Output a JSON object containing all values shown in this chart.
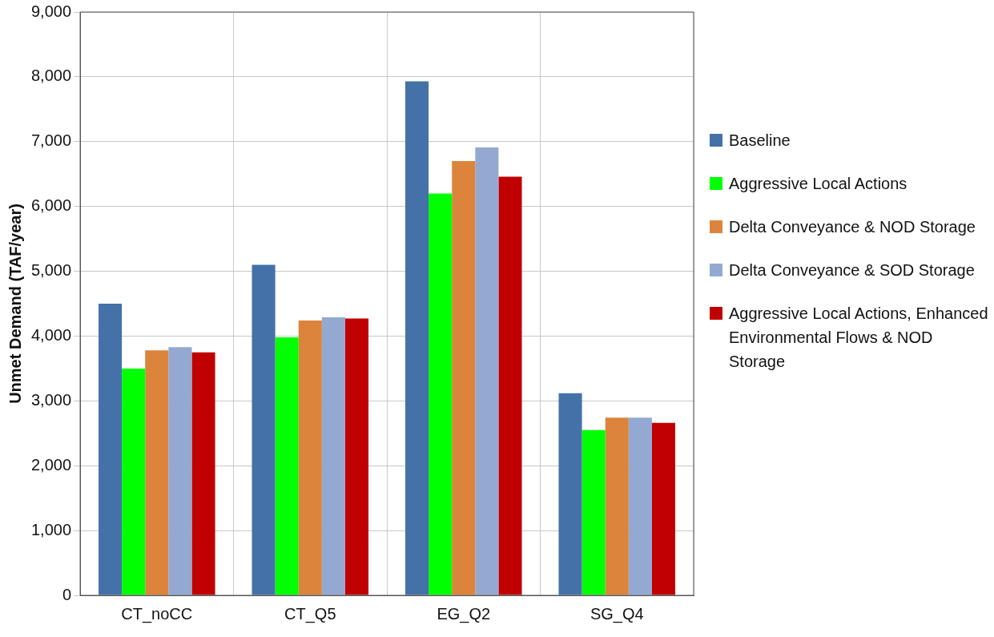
{
  "chart_data": {
    "type": "bar",
    "ylabel": "Unmet Demand (TAF/year)",
    "categories": [
      "CT_noCC",
      "CT_Q5",
      "EG_Q2",
      "SG_Q4"
    ],
    "series": [
      {
        "name": "Baseline",
        "color": "#4472a8",
        "values": [
          4500,
          5100,
          7930,
          3120
        ]
      },
      {
        "name": "Aggressive Local Actions",
        "color": "#00ff00",
        "values": [
          3500,
          3980,
          6200,
          2550
        ]
      },
      {
        "name": "Delta Conveyance & NOD Storage",
        "color": "#dc843c",
        "values": [
          3780,
          4240,
          6700,
          2740
        ]
      },
      {
        "name": "Delta Conveyance & SOD Storage",
        "color": "#93a9d1",
        "values": [
          3830,
          4290,
          6910,
          2740
        ]
      },
      {
        "name": "Aggressive Local Actions, Enhanced Environmental Flows & NOD Storage",
        "color": "#c00000",
        "values": [
          3750,
          4270,
          6460,
          2660
        ]
      }
    ],
    "ylim": [
      0,
      9000
    ],
    "yticks": [
      {
        "value": 0,
        "label": "0"
      },
      {
        "value": 1000,
        "label": "1,000"
      },
      {
        "value": 2000,
        "label": "2,000"
      },
      {
        "value": 3000,
        "label": "3,000"
      },
      {
        "value": 4000,
        "label": "4,000"
      },
      {
        "value": 5000,
        "label": "5,000"
      },
      {
        "value": 6000,
        "label": "6,000"
      },
      {
        "value": 7000,
        "label": "7,000"
      },
      {
        "value": 8000,
        "label": "8,000"
      },
      {
        "value": 9000,
        "label": "9,000"
      }
    ],
    "grid": true,
    "legend": "right"
  }
}
